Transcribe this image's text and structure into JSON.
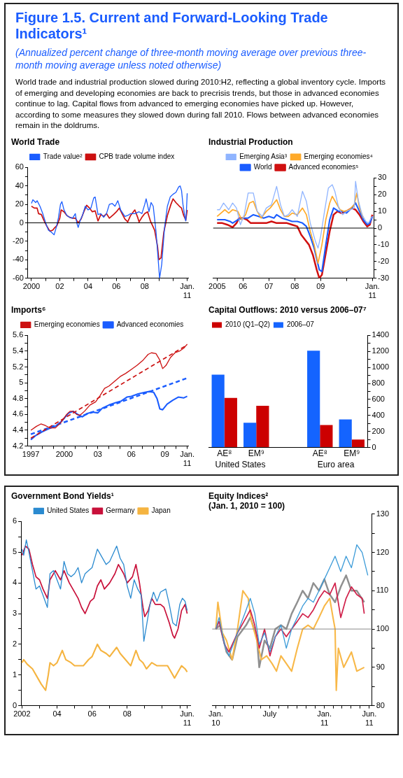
{
  "chart_data": [
    {
      "type": "other",
      "title": "Figure 1.5.  Current and Forward-Looking Trade Indicators¹",
      "subtitle": "(Annualized percent change of three-month moving average over previous three-month moving average unless noted otherwise)",
      "annotations": [
        "World trade and industrial production slowed during 2010:H2, reflecting a global inventory cycle. Imports of emerging and developing economies are back to precrisis trends, but those in advanced economies continue to lag. Capital flows from advanced to emerging economies have picked up. However, according to some measures they slowed down during fall 2010. Flows between advanced economies remain in the doldrums."
      ]
    },
    {
      "type": "line",
      "title": "World Trade",
      "legend": "top",
      "xlim": [
        1999.75,
        2011.1
      ],
      "xticks": [
        2000,
        {
          "value": 2001,
          "label": null
        },
        {
          "value": 2002,
          "label": "02"
        },
        {
          "value": 2003,
          "label": null
        },
        {
          "value": 2004,
          "label": "04"
        },
        {
          "value": 2005,
          "label": null
        },
        {
          "value": 2006,
          "label": "06"
        },
        {
          "value": 2007,
          "label": null
        },
        {
          "value": 2008,
          "label": "08"
        },
        {
          "value": 2009,
          "label": null
        },
        {
          "value": 2010,
          "label": null
        },
        {
          "value": 2011,
          "label": "Jan. 11"
        }
      ],
      "ylim": [
        -60,
        60
      ],
      "yticks": [
        -60,
        {
          "value": -50,
          "label": null
        },
        -40,
        {
          "value": -30,
          "label": null
        },
        -20,
        {
          "value": -10,
          "label": null
        },
        0,
        {
          "value": 10,
          "label": null
        },
        20,
        {
          "value": 30,
          "label": null
        },
        40,
        {
          "value": 50,
          "label": null
        },
        60
      ],
      "ref_lines": [
        {
          "axis": "y",
          "value": 0,
          "color": "#000000"
        }
      ],
      "series": [
        {
          "name": "Trade value²",
          "color": "#1a5cff",
          "x": [
            2000.0,
            2000.1,
            2000.3,
            2000.4,
            2000.6,
            2000.8,
            2001.0,
            2001.2,
            2001.4,
            2001.6,
            2001.75,
            2001.9,
            2002.05,
            2002.15,
            2002.3,
            2002.5,
            2002.7,
            2002.9,
            2003.1,
            2003.2,
            2003.3,
            2003.45,
            2003.6,
            2003.8,
            2004.0,
            2004.2,
            2004.4,
            2004.5,
            2004.7,
            2004.9,
            2005.1,
            2005.3,
            2005.5,
            2005.7,
            2005.9,
            2006.1,
            2006.3,
            2006.6,
            2006.8,
            2007.0,
            2007.3,
            2007.6,
            2007.8,
            2008.0,
            2008.1,
            2008.3,
            2008.45,
            2008.6,
            2008.8,
            2008.95,
            2009.05,
            2009.2,
            2009.4,
            2009.6,
            2009.8,
            2010.0,
            2010.2,
            2010.4,
            2010.5,
            2010.6,
            2010.7,
            2010.85,
            2010.9,
            2010.95,
            2011.0
          ],
          "values": [
            21,
            25,
            22,
            24,
            18,
            10,
            0,
            -8,
            -10,
            -13,
            -5,
            5,
            20,
            23,
            14,
            8,
            6,
            5,
            10,
            0,
            -5,
            3,
            8,
            18,
            14,
            16,
            27,
            28,
            9,
            10,
            6,
            10,
            20,
            21,
            18,
            24,
            14,
            7,
            8,
            10,
            10,
            12,
            10,
            20,
            26,
            12,
            22,
            18,
            -10,
            -40,
            -60,
            -45,
            -5,
            18,
            28,
            31,
            33,
            39,
            40,
            35,
            20,
            5,
            2,
            15,
            32
          ]
        },
        {
          "name": "CPB trade volume index",
          "color": "#cc1010",
          "x": [
            2000.0,
            2000.2,
            2000.4,
            2000.5,
            2000.7,
            2000.9,
            2001.1,
            2001.3,
            2001.5,
            2001.6,
            2001.8,
            2002.0,
            2002.1,
            2002.3,
            2002.5,
            2002.7,
            2002.9,
            2003.1,
            2003.3,
            2003.5,
            2003.7,
            2003.9,
            2004.1,
            2004.3,
            2004.5,
            2004.7,
            2004.9,
            2005.1,
            2005.3,
            2005.5,
            2005.8,
            2006.0,
            2006.2,
            2006.4,
            2006.6,
            2006.8,
            2007.0,
            2007.3,
            2007.5,
            2007.6,
            2007.8,
            2008.0,
            2008.2,
            2008.4,
            2008.55,
            2008.7,
            2008.9,
            2009.0,
            2009.15,
            2009.35,
            2009.6,
            2009.85,
            2010.0,
            2010.2,
            2010.45,
            2010.6,
            2010.75,
            2010.9,
            2011.0
          ],
          "values": [
            18,
            16,
            16,
            10,
            9,
            2,
            -4,
            -9,
            -8,
            -6,
            -3,
            5,
            14,
            12,
            8,
            6,
            5,
            5,
            0,
            4,
            12,
            19,
            16,
            12,
            13,
            2,
            9,
            7,
            10,
            5,
            9,
            12,
            16,
            10,
            4,
            1,
            8,
            14,
            6,
            1,
            6,
            10,
            12,
            2,
            -3,
            -8,
            -25,
            -40,
            -38,
            -10,
            8,
            20,
            26,
            22,
            18,
            16,
            8,
            3,
            14
          ]
        }
      ]
    },
    {
      "type": "line",
      "title": "Industrial Production",
      "legend": "top",
      "xlim": [
        2004.85,
        2011.05
      ],
      "xticks": [
        2005,
        {
          "value": 2006,
          "label": "06"
        },
        {
          "value": 2007,
          "label": "07"
        },
        {
          "value": 2008,
          "label": "08"
        },
        {
          "value": 2009,
          "label": "09"
        },
        {
          "value": 2010,
          "label": null
        },
        {
          "value": 2011,
          "label": "Jan. 11"
        }
      ],
      "y2lim": [
        -30,
        30
      ],
      "y2ticks": [
        -30,
        {
          "value": -25,
          "label": null
        },
        -20,
        {
          "value": -15,
          "label": null
        },
        -10,
        {
          "value": -5,
          "label": null
        },
        0,
        {
          "value": 5,
          "label": null
        },
        10,
        {
          "value": 15,
          "label": null
        },
        20,
        {
          "value": 25,
          "label": null
        },
        30
      ],
      "ref_lines": [
        {
          "axis": "y2",
          "value": 0,
          "color": "#000000"
        }
      ],
      "series": [
        {
          "name": "Emerging Asia³",
          "color": "#8fb4ff",
          "axis": "y2",
          "x": [
            2005.0,
            2005.1,
            2005.25,
            2005.35,
            2005.45,
            2005.6,
            2005.75,
            2005.9,
            2006.05,
            2006.2,
            2006.4,
            2006.55,
            2006.75,
            2006.9,
            2007.1,
            2007.3,
            2007.45,
            2007.6,
            2007.75,
            2007.9,
            2008.1,
            2008.3,
            2008.45,
            2008.6,
            2008.8,
            2008.9,
            2009.0,
            2009.15,
            2009.3,
            2009.45,
            2009.55,
            2009.7,
            2009.85,
            2010.0,
            2010.15,
            2010.3,
            2010.35,
            2010.45,
            2010.6,
            2010.75,
            2010.85,
            2010.95,
            2011.0
          ],
          "values": [
            11,
            11,
            15,
            13,
            11,
            15,
            12,
            2,
            8,
            21,
            21,
            10,
            7,
            12,
            14,
            25,
            14,
            7,
            8,
            11,
            7,
            22,
            16,
            3,
            -8,
            -12,
            -5,
            10,
            24,
            26,
            22,
            12,
            8,
            10,
            11,
            12,
            28,
            17,
            8,
            4,
            3,
            6,
            7
          ]
        },
        {
          "name": "Emerging economies⁴",
          "color": "#ffaa2a",
          "axis": "y2",
          "x": [
            2005.0,
            2005.15,
            2005.3,
            2005.45,
            2005.6,
            2005.8,
            2005.95,
            2006.1,
            2006.25,
            2006.4,
            2006.55,
            2006.7,
            2006.9,
            2007.05,
            2007.3,
            2007.45,
            2007.6,
            2007.75,
            2007.9,
            2008.1,
            2008.3,
            2008.45,
            2008.6,
            2008.75,
            2008.9,
            2009.05,
            2009.2,
            2009.35,
            2009.45,
            2009.6,
            2009.75,
            2009.9,
            2010.1,
            2010.3,
            2010.4,
            2010.5,
            2010.65
          ],
          "values": [
            7,
            9,
            11,
            9,
            11,
            10,
            5,
            8,
            15,
            16,
            10,
            6,
            10,
            12,
            17,
            11,
            7,
            7,
            9,
            8,
            12,
            8,
            -2,
            -10,
            -21,
            -10,
            5,
            15,
            19,
            15,
            11,
            10,
            11,
            14,
            21,
            12,
            6
          ]
        },
        {
          "name": "World",
          "color": "#1a5cff",
          "axis": "y2",
          "x": [
            2005.0,
            2005.3,
            2005.5,
            2005.6,
            2005.8,
            2006.0,
            2006.2,
            2006.4,
            2006.6,
            2006.8,
            2007.0,
            2007.2,
            2007.3,
            2007.5,
            2007.7,
            2007.9,
            2008.1,
            2008.3,
            2008.45,
            2008.6,
            2008.75,
            2008.95,
            2009.05,
            2009.2,
            2009.35,
            2009.5,
            2009.7,
            2009.85,
            2010.0,
            2010.2,
            2010.35,
            2010.5,
            2010.65,
            2010.8,
            2010.9,
            2011.0
          ],
          "values": [
            5,
            5,
            4,
            3,
            5,
            6,
            6,
            8,
            7,
            6,
            7,
            6,
            8,
            6,
            5,
            4,
            4,
            3,
            1,
            -5,
            -12,
            -25,
            -26,
            -10,
            5,
            12,
            10,
            10,
            9,
            12,
            15,
            10,
            5,
            2,
            3,
            7
          ]
        },
        {
          "name": "Advanced economies⁵",
          "color": "#d01010",
          "axis": "y2",
          "x": [
            2005.0,
            2005.2,
            2005.4,
            2005.6,
            2005.75,
            2005.85,
            2006.0,
            2006.15,
            2006.3,
            2006.5,
            2006.7,
            2006.9,
            2007.1,
            2007.3,
            2007.5,
            2007.7,
            2007.9,
            2008.1,
            2008.25,
            2008.4,
            2008.55,
            2008.7,
            2008.85,
            2008.95,
            2009.05,
            2009.2,
            2009.35,
            2009.5,
            2009.65,
            2009.8,
            2010.0,
            2010.2,
            2010.35,
            2010.5,
            2010.65,
            2010.8,
            2010.9,
            2011.0
          ],
          "values": [
            3,
            3,
            2,
            0.5,
            3,
            6,
            6,
            5,
            3,
            3,
            3,
            3,
            4,
            3,
            3,
            3,
            2,
            1,
            -4,
            -7,
            -10,
            -16,
            -25,
            -30,
            -28,
            -15,
            -2,
            8,
            10,
            9,
            10,
            12,
            11,
            8,
            4,
            1,
            2,
            8
          ]
        }
      ]
    },
    {
      "type": "line",
      "title": "Imports⁶",
      "legend": "top",
      "xlim": [
        1996.7,
        2011.1
      ],
      "xticks": [
        1997,
        {
          "value": 1998,
          "label": null
        },
        {
          "value": 1999,
          "label": null
        },
        2000,
        {
          "value": 2001,
          "label": null
        },
        {
          "value": 2002,
          "label": null
        },
        {
          "value": 2003,
          "label": "03"
        },
        {
          "value": 2004,
          "label": null
        },
        {
          "value": 2005,
          "label": null
        },
        {
          "value": 2006,
          "label": "06"
        },
        {
          "value": 2007,
          "label": null
        },
        {
          "value": 2008,
          "label": null
        },
        {
          "value": 2009,
          "label": "09"
        },
        {
          "value": 2010,
          "label": null
        },
        {
          "value": 2011,
          "label": "Jan. 11"
        }
      ],
      "ylim": [
        4.2,
        5.6
      ],
      "yticks": [
        4.2,
        {
          "value": 4.3,
          "label": null
        },
        4.4,
        {
          "value": 4.5,
          "label": null
        },
        4.6,
        {
          "value": 4.7,
          "label": null
        },
        4.8,
        {
          "value": 4.9,
          "label": null
        },
        5,
        {
          "value": 5.1,
          "label": null
        },
        5.2,
        {
          "value": 5.3,
          "label": null
        },
        5.4,
        {
          "value": 5.5,
          "label": null
        },
        5.6
      ],
      "series": [
        {
          "name": "Emerging economies",
          "color": "#cc1010",
          "x": [
            1997.0,
            1997.5,
            1997.9,
            1998.3,
            1998.7,
            1999.2,
            1999.7,
            2000.2,
            2000.5,
            2000.8,
            2001.1,
            2001.4,
            2001.8,
            2002.3,
            2002.8,
            2003.2,
            2003.6,
            2004.0,
            2004.5,
            2005.0,
            2005.5,
            2006.0,
            2006.5,
            2007.0,
            2007.5,
            2007.8,
            2008.2,
            2008.5,
            2008.8,
            2009.1,
            2009.5,
            2009.9,
            2010.3,
            2010.7,
            2011.0
          ],
          "values": [
            4.4,
            4.45,
            4.48,
            4.46,
            4.43,
            4.43,
            4.5,
            4.6,
            4.64,
            4.64,
            4.6,
            4.59,
            4.64,
            4.72,
            4.76,
            4.84,
            4.93,
            4.96,
            5.02,
            5.08,
            5.12,
            5.17,
            5.22,
            5.28,
            5.36,
            5.38,
            5.37,
            5.3,
            5.18,
            5.22,
            5.32,
            5.38,
            5.4,
            5.44,
            5.49
          ]
        },
        {
          "type": "line",
          "color": "#cc1010",
          "line_style": "dashed",
          "x": [
            1997.0,
            2011.0
          ],
          "values": [
            4.3,
            5.48
          ]
        },
        {
          "name": "Advanced economies",
          "color": "#1a5cff",
          "x": [
            1997.0,
            1997.4,
            1998.0,
            1998.6,
            1999.2,
            1999.8,
            2000.4,
            2000.8,
            2001.2,
            2001.6,
            2002.0,
            2002.5,
            2003.0,
            2003.4,
            2004.0,
            2004.6,
            2005.1,
            2005.6,
            2006.0,
            2006.6,
            2007.2,
            2007.6,
            2008.0,
            2008.3,
            2008.55,
            2008.8,
            2009.2,
            2009.7,
            2010.2,
            2010.7,
            2011.0
          ],
          "values": [
            4.28,
            4.33,
            4.38,
            4.42,
            4.45,
            4.52,
            4.62,
            4.64,
            4.6,
            4.57,
            4.61,
            4.63,
            4.62,
            4.68,
            4.72,
            4.75,
            4.77,
            4.82,
            4.83,
            4.86,
            4.88,
            4.89,
            4.88,
            4.8,
            4.67,
            4.66,
            4.73,
            4.78,
            4.82,
            4.81,
            4.83
          ]
        },
        {
          "type": "line",
          "color": "#1a5cff",
          "line_style": "dashed",
          "x": [
            1997.0,
            2011.0
          ],
          "values": [
            4.35,
            5.06
          ]
        }
      ]
    },
    {
      "type": "bar",
      "title": "Capital Outflows: 2010 versus 2006–07⁷",
      "legend": "top left",
      "categories": [
        "AE⁸",
        "EM⁹",
        null,
        "AE⁸",
        "EM⁹"
      ],
      "y2lim": [
        0,
        1400
      ],
      "y2ticks": [
        0,
        {
          "value": 100,
          "label": null
        },
        200,
        {
          "value": 300,
          "label": null
        },
        400,
        {
          "value": 500,
          "label": null
        },
        600,
        {
          "value": 700,
          "label": null
        },
        800,
        {
          "value": 900,
          "label": null
        },
        1000,
        {
          "value": 1100,
          "label": null
        },
        1200,
        {
          "value": 1300,
          "label": null
        },
        1400
      ],
      "annotations": [
        "United States",
        "Euro area"
      ],
      "series": [
        {
          "name": "2006–07",
          "color": "#1464ff",
          "axis": "y2",
          "values": [
            910,
            310,
            null,
            1210,
            350
          ]
        },
        {
          "name": "2010 (Q1–Q2)",
          "color": "#cc0000",
          "axis": "y2",
          "values": [
            620,
            520,
            null,
            280,
            100
          ]
        }
      ]
    },
    {
      "type": "line",
      "title": "Government Bond Yields¹",
      "legend": "top",
      "xlim": [
        2001.95,
        2011.6
      ],
      "xticks": [
        2002,
        {
          "value": 2003,
          "label": null
        },
        {
          "value": 2004,
          "label": "04"
        },
        {
          "value": 2005,
          "label": null
        },
        {
          "value": 2006,
          "label": "06"
        },
        {
          "value": 2007,
          "label": null
        },
        {
          "value": 2008,
          "label": "08"
        },
        {
          "value": 2009,
          "label": null
        },
        {
          "value": 2010,
          "label": null
        },
        {
          "value": 2011,
          "label": null
        },
        {
          "value": 2011.42,
          "label": "Jun. 11"
        }
      ],
      "ylim": [
        0,
        6
      ],
      "yticks": [
        0,
        {
          "value": 0.5,
          "label": null
        },
        1,
        {
          "value": 1.5,
          "label": null
        },
        2,
        {
          "value": 2.5,
          "label": null
        },
        3,
        {
          "value": 3.5,
          "label": null
        },
        4,
        {
          "value": 4.5,
          "label": null
        },
        5,
        {
          "value": 5.5,
          "label": null
        },
        6
      ],
      "series": [
        {
          "name": "United States",
          "color": "#2a8ad0",
          "x": [
            2002.0,
            2002.1,
            2002.25,
            2002.4,
            2002.6,
            2002.8,
            2003.0,
            2003.2,
            2003.45,
            2003.6,
            2003.8,
            2004.0,
            2004.2,
            2004.4,
            2004.6,
            2004.8,
            2005.0,
            2005.2,
            2005.4,
            2005.6,
            2005.8,
            2006.0,
            2006.3,
            2006.5,
            2006.8,
            2007.0,
            2007.4,
            2007.6,
            2007.8,
            2008.0,
            2008.2,
            2008.4,
            2008.6,
            2008.8,
            2008.95,
            2009.1,
            2009.3,
            2009.5,
            2009.7,
            2009.9,
            2010.2,
            2010.4,
            2010.6,
            2010.8,
            2011.0,
            2011.15,
            2011.3,
            2011.42
          ],
          "values": [
            5.1,
            4.9,
            5.4,
            5.0,
            4.4,
            3.8,
            3.9,
            3.6,
            3.2,
            4.3,
            4.4,
            4.1,
            3.8,
            4.7,
            4.3,
            4.2,
            4.3,
            4.5,
            4.0,
            4.3,
            4.4,
            4.5,
            5.1,
            4.9,
            4.6,
            4.7,
            5.2,
            4.8,
            4.6,
            3.9,
            3.5,
            4.1,
            3.8,
            3.6,
            2.1,
            2.6,
            3.3,
            3.7,
            3.4,
            3.7,
            3.8,
            3.3,
            2.7,
            2.6,
            3.3,
            3.5,
            3.4,
            3.1
          ]
        },
        {
          "name": "Germany",
          "color": "#c8103a",
          "x": [
            2002.0,
            2002.2,
            2002.4,
            2002.6,
            2002.8,
            2003.0,
            2003.2,
            2003.45,
            2003.6,
            2003.9,
            2004.2,
            2004.4,
            2004.7,
            2004.9,
            2005.2,
            2005.4,
            2005.6,
            2005.9,
            2006.1,
            2006.3,
            2006.5,
            2006.7,
            2007.0,
            2007.3,
            2007.5,
            2007.8,
            2008.0,
            2008.3,
            2008.5,
            2008.7,
            2008.9,
            2009.0,
            2009.2,
            2009.4,
            2009.6,
            2009.9,
            2010.1,
            2010.4,
            2010.6,
            2010.7,
            2010.9,
            2011.1,
            2011.3,
            2011.42
          ],
          "values": [
            4.9,
            5.2,
            5.1,
            4.6,
            4.2,
            4.1,
            3.8,
            3.5,
            4.1,
            4.4,
            4.1,
            4.4,
            4.0,
            3.8,
            3.5,
            3.2,
            3.0,
            3.4,
            3.5,
            3.9,
            4.1,
            3.8,
            4.0,
            4.3,
            4.6,
            4.3,
            4.0,
            4.2,
            4.6,
            4.0,
            3.2,
            2.9,
            3.1,
            3.5,
            3.3,
            3.3,
            3.2,
            2.7,
            2.3,
            2.2,
            2.5,
            3.1,
            3.3,
            3.0
          ]
        },
        {
          "name": "Japan",
          "color": "#f5b440",
          "x": [
            2002.0,
            2002.1,
            2002.3,
            2002.6,
            2002.9,
            2003.1,
            2003.35,
            2003.5,
            2003.6,
            2003.8,
            2004.0,
            2004.3,
            2004.5,
            2004.8,
            2005.0,
            2005.2,
            2005.5,
            2005.8,
            2006.0,
            2006.3,
            2006.5,
            2006.8,
            2007.0,
            2007.4,
            2007.6,
            2007.9,
            2008.2,
            2008.5,
            2008.7,
            2008.9,
            2009.1,
            2009.4,
            2009.7,
            2010.0,
            2010.3,
            2010.5,
            2010.7,
            2010.9,
            2011.1,
            2011.3,
            2011.42
          ],
          "values": [
            1.4,
            1.5,
            1.35,
            1.2,
            0.9,
            0.7,
            0.5,
            1.0,
            1.4,
            1.3,
            1.4,
            1.8,
            1.5,
            1.4,
            1.3,
            1.3,
            1.3,
            1.5,
            1.6,
            2.0,
            1.8,
            1.7,
            1.6,
            1.9,
            1.7,
            1.5,
            1.3,
            1.8,
            1.5,
            1.4,
            1.2,
            1.4,
            1.3,
            1.3,
            1.3,
            1.1,
            0.9,
            1.1,
            1.3,
            1.2,
            1.1
          ]
        }
      ]
    },
    {
      "type": "line",
      "title": "Equity Indices²",
      "subtitle": "(Jan. 1, 2010 = 100)",
      "xlim": [
        "2009-12-20",
        "2011-06-10"
      ],
      "xticks": [
        {
          "value": "2010-01-01",
          "label": "Jan. 10"
        },
        {
          "value": "2010-02-01",
          "label": null
        },
        {
          "value": "2010-03-01",
          "label": null
        },
        {
          "value": "2010-04-01",
          "label": null
        },
        {
          "value": "2010-05-01",
          "label": null
        },
        {
          "value": "2010-06-01",
          "label": null
        },
        {
          "value": "2010-07-01",
          "label": "July"
        },
        {
          "value": "2010-08-01",
          "label": null
        },
        {
          "value": "2010-09-01",
          "label": null
        },
        {
          "value": "2010-10-01",
          "label": null
        },
        {
          "value": "2010-11-01",
          "label": null
        },
        {
          "value": "2010-12-01",
          "label": null
        },
        {
          "value": "2011-01-01",
          "label": "Jan. 11"
        },
        {
          "value": "2011-02-01",
          "label": null
        },
        {
          "value": "2011-03-01",
          "label": null
        },
        {
          "value": "2011-04-01",
          "label": null
        },
        {
          "value": "2011-05-01",
          "label": null
        },
        {
          "value": "2011-06-01",
          "label": "Jun. 11"
        }
      ],
      "y2lim": [
        80,
        130
      ],
      "y2ticks": [
        80,
        {
          "value": 85,
          "label": null
        },
        90,
        {
          "value": 95,
          "label": null
        },
        100,
        {
          "value": 105,
          "label": null
        },
        110,
        {
          "value": 115,
          "label": null
        },
        120,
        {
          "value": 125,
          "label": null
        },
        130
      ],
      "ref_lines": [
        {
          "axis": "y2",
          "value": 100,
          "color": "#888888"
        }
      ],
      "series": [
        {
          "color": "#3a9ad8",
          "axis": "y2",
          "x": [
            "2010-01-01",
            "2010-01-12",
            "2010-01-30",
            "2010-02-14",
            "2010-03-15",
            "2010-04-13",
            "2010-04-27",
            "2010-05-12",
            "2010-05-27",
            "2010-06-14",
            "2010-07-02",
            "2010-07-20",
            "2010-08-08",
            "2010-08-26",
            "2010-09-13",
            "2010-10-02",
            "2010-10-20",
            "2010-11-07",
            "2010-11-25",
            "2010-12-14",
            "2011-01-01",
            "2011-01-19",
            "2011-02-06",
            "2011-02-25",
            "2011-03-15",
            "2011-04-02",
            "2011-04-20",
            "2011-05-08",
            "2011-05-27"
          ],
          "values": [
            100,
            103,
            96,
            93,
            99,
            105,
            108,
            104,
            96,
            99,
            94,
            98,
            101,
            95,
            100,
            103,
            106,
            108,
            107,
            110,
            113,
            116,
            119,
            115,
            119,
            116,
            122,
            120,
            114
          ]
        },
        {
          "color": "#d0204a",
          "axis": "y2",
          "x": [
            "2010-01-01",
            "2010-01-12",
            "2010-01-30",
            "2010-02-14",
            "2010-03-15",
            "2010-04-13",
            "2010-04-27",
            "2010-05-12",
            "2010-05-27",
            "2010-06-14",
            "2010-07-02",
            "2010-07-20",
            "2010-08-08",
            "2010-08-26",
            "2010-09-13",
            "2010-10-02",
            "2010-10-20",
            "2010-11-07",
            "2010-11-25",
            "2010-12-14",
            "2011-01-01",
            "2011-01-19",
            "2011-02-06",
            "2011-02-25",
            "2011-03-15",
            "2011-04-02",
            "2011-04-20",
            "2011-05-08",
            "2011-05-15"
          ],
          "values": [
            100,
            102,
            96,
            94,
            99,
            103,
            105,
            101,
            95,
            100,
            93,
            98,
            100,
            98,
            100,
            102,
            104,
            103,
            105,
            108,
            110,
            109,
            112,
            103,
            108,
            111,
            109,
            108,
            104
          ]
        },
        {
          "color": "#f8b848",
          "axis": "y2",
          "x": [
            "2010-01-01",
            "2010-01-08",
            "2010-01-23",
            "2010-02-06",
            "2010-02-25",
            "2010-03-15",
            "2010-04-02",
            "2010-04-20",
            "2010-05-01",
            "2010-05-19",
            "2010-06-03",
            "2010-06-21",
            "2010-07-09",
            "2010-07-24",
            "2010-08-08",
            "2010-08-26",
            "2010-09-13",
            "2010-10-02",
            "2010-10-20",
            "2010-11-07",
            "2010-11-25",
            "2010-12-14",
            "2011-01-01",
            "2011-01-19",
            "2011-01-30",
            "2011-02-06",
            "2011-02-10",
            "2011-02-17",
            "2011-03-07",
            "2011-04-02",
            "2011-04-20",
            "2011-05-15"
          ],
          "values": [
            100,
            107,
            99,
            97,
            92,
            100,
            110,
            108,
            102,
            97,
            92,
            93,
            91,
            89,
            93,
            91,
            89,
            95,
            100,
            101,
            100,
            103,
            106,
            108,
            103,
            100,
            84,
            95,
            90,
            94,
            89,
            90
          ]
        },
        {
          "color": "#909090",
          "axis": "y2",
          "x": [
            "2010-01-01",
            "2010-01-15",
            "2010-02-06",
            "2010-02-25",
            "2010-03-15",
            "2010-04-13",
            "2010-04-27",
            "2010-05-19",
            "2010-05-27",
            "2010-06-14",
            "2010-07-02",
            "2010-07-20",
            "2010-08-08",
            "2010-08-26",
            "2010-09-13",
            "2010-10-02",
            "2010-10-20",
            "2010-11-07",
            "2010-11-25",
            "2010-12-14",
            "2011-01-01",
            "2011-01-19",
            "2011-02-06",
            "2011-02-25",
            "2011-03-15",
            "2011-04-02",
            "2011-04-20",
            "2011-05-15"
          ],
          "values": [
            100,
            101,
            94,
            92,
            98,
            101,
            103,
            98,
            90,
            97,
            95,
            100,
            101,
            100,
            104,
            107,
            110,
            108,
            112,
            110,
            113,
            109,
            107,
            111,
            114,
            110,
            110,
            107
          ]
        }
      ]
    }
  ]
}
